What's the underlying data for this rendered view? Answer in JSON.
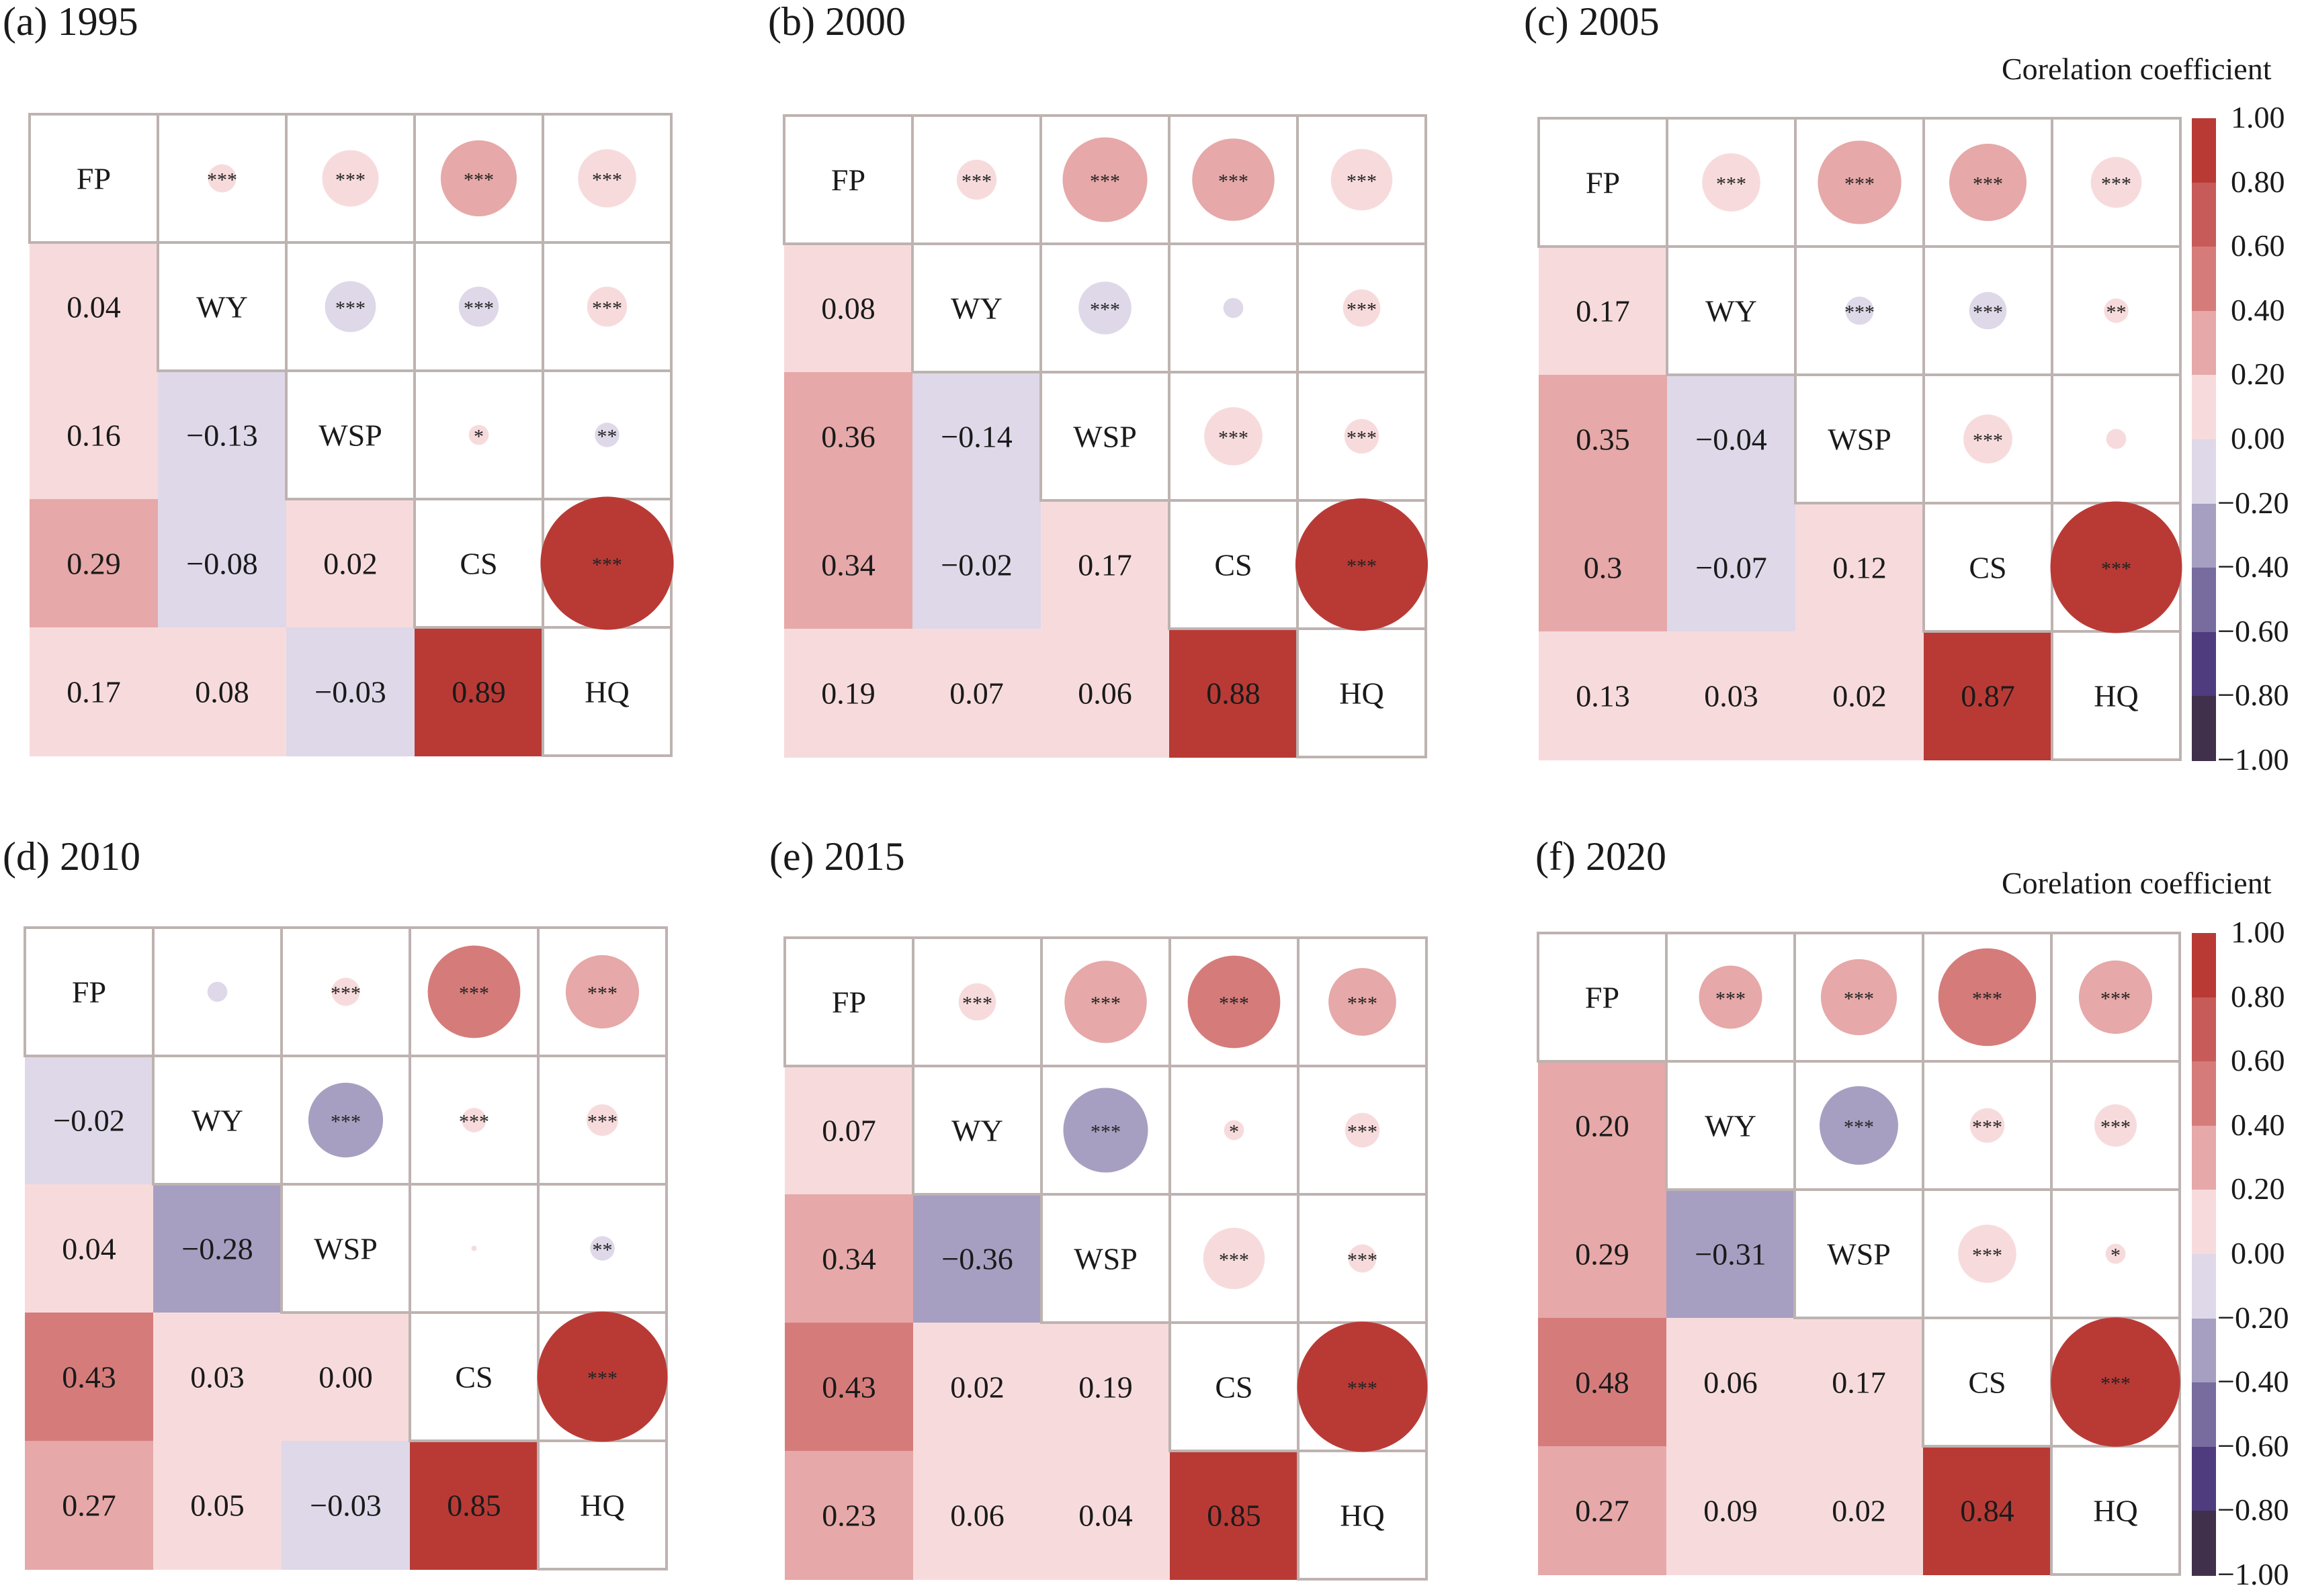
{
  "chart_data": {
    "type": "heatmap",
    "variables": [
      "FP",
      "WY",
      "WSP",
      "CS",
      "HQ"
    ],
    "legend": {
      "title": "Corelation coefficient",
      "ticks": [
        "1.00",
        "0.80",
        "0.60",
        "0.40",
        "0.20",
        "0.00",
        "-0.20",
        "-0.40",
        "-0.60",
        "-0.80",
        "-1.00"
      ],
      "tick_labels": [
        "1.00",
        "0.80",
        "0.60",
        "0.40",
        "0.20",
        "0.00",
        "−0.20",
        "−0.40",
        "−0.60",
        "−0.80",
        "−1.00"
      ],
      "range": [
        -1.0,
        1.0
      ],
      "bins": [
        {
          "from": 0.8,
          "to": 1.0,
          "color": "#b93a35"
        },
        {
          "from": 0.6,
          "to": 0.8,
          "color": "#c75b59"
        },
        {
          "from": 0.4,
          "to": 0.6,
          "color": "#d57c7b"
        },
        {
          "from": 0.2,
          "to": 0.4,
          "color": "#e6a8a8"
        },
        {
          "from": 0.0,
          "to": 0.2,
          "color": "#f7dbdc"
        },
        {
          "from": -0.2,
          "to": 0.0,
          "color": "#ded8e8"
        },
        {
          "from": -0.4,
          "to": -0.2,
          "color": "#a79fc1"
        },
        {
          "from": -0.6,
          "to": -0.4,
          "color": "#786c9e"
        },
        {
          "from": -0.8,
          "to": -0.6,
          "color": "#4f3c7e"
        },
        {
          "from": -1.0,
          "to": -0.8,
          "color": "#41304c"
        }
      ]
    },
    "panels": [
      {
        "title": "(a) 1995",
        "lower": [
          [
            null,
            null,
            null,
            null,
            null
          ],
          [
            0.04,
            null,
            null,
            null,
            null
          ],
          [
            0.16,
            -0.13,
            null,
            null,
            null
          ],
          [
            0.29,
            -0.08,
            0.02,
            null,
            null
          ],
          [
            0.17,
            0.08,
            -0.03,
            0.89,
            null
          ]
        ],
        "lower_labels": [
          [
            null,
            null,
            null,
            null,
            null
          ],
          [
            "0.04",
            null,
            null,
            null,
            null
          ],
          [
            "0.16",
            "−0.13",
            null,
            null,
            null
          ],
          [
            "0.29",
            "−0.08",
            "0.02",
            null,
            null
          ],
          [
            "0.17",
            "0.08",
            "−0.03",
            "0.89",
            null
          ]
        ],
        "sig": [
          [
            null,
            "***",
            "***",
            "***",
            "***"
          ],
          [
            null,
            null,
            "***",
            "***",
            "***"
          ],
          [
            null,
            null,
            null,
            "*",
            "**"
          ],
          [
            null,
            null,
            null,
            null,
            "***"
          ],
          [
            null,
            null,
            null,
            null,
            null
          ]
        ]
      },
      {
        "title": "(b) 2000",
        "lower": [
          [
            null,
            null,
            null,
            null,
            null
          ],
          [
            0.08,
            null,
            null,
            null,
            null
          ],
          [
            0.36,
            -0.14,
            null,
            null,
            null
          ],
          [
            0.34,
            -0.02,
            0.17,
            null,
            null
          ],
          [
            0.19,
            0.07,
            0.06,
            0.88,
            null
          ]
        ],
        "lower_labels": [
          [
            null,
            null,
            null,
            null,
            null
          ],
          [
            "0.08",
            null,
            null,
            null,
            null
          ],
          [
            "0.36",
            "−0.14",
            null,
            null,
            null
          ],
          [
            "0.34",
            "−0.02",
            "0.17",
            null,
            null
          ],
          [
            "0.19",
            "0.07",
            "0.06",
            "0.88",
            null
          ]
        ],
        "sig": [
          [
            null,
            "***",
            "***",
            "***",
            "***"
          ],
          [
            null,
            null,
            "***",
            "",
            "***"
          ],
          [
            null,
            null,
            null,
            "***",
            "***"
          ],
          [
            null,
            null,
            null,
            null,
            "***"
          ],
          [
            null,
            null,
            null,
            null,
            null
          ]
        ]
      },
      {
        "title": "(c) 2005",
        "lower": [
          [
            null,
            null,
            null,
            null,
            null
          ],
          [
            0.17,
            null,
            null,
            null,
            null
          ],
          [
            0.35,
            -0.04,
            null,
            null,
            null
          ],
          [
            0.3,
            -0.07,
            0.12,
            null,
            null
          ],
          [
            0.13,
            0.03,
            0.02,
            0.87,
            null
          ]
        ],
        "lower_labels": [
          [
            null,
            null,
            null,
            null,
            null
          ],
          [
            "0.17",
            null,
            null,
            null,
            null
          ],
          [
            "0.35",
            "−0.04",
            null,
            null,
            null
          ],
          [
            "0.3",
            "−0.07",
            "0.12",
            null,
            null
          ],
          [
            "0.13",
            "0.03",
            "0.02",
            "0.87",
            null
          ]
        ],
        "sig": [
          [
            null,
            "***",
            "***",
            "***",
            "***"
          ],
          [
            null,
            null,
            "***",
            "***",
            "**"
          ],
          [
            null,
            null,
            null,
            "***",
            ""
          ],
          [
            null,
            null,
            null,
            null,
            "***"
          ],
          [
            null,
            null,
            null,
            null,
            null
          ]
        ]
      },
      {
        "title": "(d) 2010",
        "lower": [
          [
            null,
            null,
            null,
            null,
            null
          ],
          [
            -0.02,
            null,
            null,
            null,
            null
          ],
          [
            0.04,
            -0.28,
            null,
            null,
            null
          ],
          [
            0.43,
            0.03,
            0.0,
            null,
            null
          ],
          [
            0.27,
            0.05,
            -0.03,
            0.85,
            null
          ]
        ],
        "lower_labels": [
          [
            null,
            null,
            null,
            null,
            null
          ],
          [
            "−0.02",
            null,
            null,
            null,
            null
          ],
          [
            "0.04",
            "−0.28",
            null,
            null,
            null
          ],
          [
            "0.43",
            "0.03",
            "0.00",
            null,
            null
          ],
          [
            "0.27",
            "0.05",
            "−0.03",
            "0.85",
            null
          ]
        ],
        "sig": [
          [
            null,
            "",
            "***",
            "***",
            "***"
          ],
          [
            null,
            null,
            "***",
            "***",
            "***"
          ],
          [
            null,
            null,
            null,
            "",
            "**"
          ],
          [
            null,
            null,
            null,
            null,
            "***"
          ],
          [
            null,
            null,
            null,
            null,
            null
          ]
        ]
      },
      {
        "title": "(e) 2015",
        "lower": [
          [
            null,
            null,
            null,
            null,
            null
          ],
          [
            0.07,
            null,
            null,
            null,
            null
          ],
          [
            0.34,
            -0.36,
            null,
            null,
            null
          ],
          [
            0.43,
            0.02,
            0.19,
            null,
            null
          ],
          [
            0.23,
            0.06,
            0.04,
            0.85,
            null
          ]
        ],
        "lower_labels": [
          [
            null,
            null,
            null,
            null,
            null
          ],
          [
            "0.07",
            null,
            null,
            null,
            null
          ],
          [
            "0.34",
            "−0.36",
            null,
            null,
            null
          ],
          [
            "0.43",
            "0.02",
            "0.19",
            null,
            null
          ],
          [
            "0.23",
            "0.06",
            "0.04",
            "0.85",
            null
          ]
        ],
        "sig": [
          [
            null,
            "***",
            "***",
            "***",
            "***"
          ],
          [
            null,
            null,
            "***",
            "*",
            "***"
          ],
          [
            null,
            null,
            null,
            "***",
            "***"
          ],
          [
            null,
            null,
            null,
            null,
            "***"
          ],
          [
            null,
            null,
            null,
            null,
            null
          ]
        ]
      },
      {
        "title": "(f) 2020",
        "lower": [
          [
            null,
            null,
            null,
            null,
            null
          ],
          [
            0.2,
            null,
            null,
            null,
            null
          ],
          [
            0.29,
            -0.31,
            null,
            null,
            null
          ],
          [
            0.48,
            0.06,
            0.17,
            null,
            null
          ],
          [
            0.27,
            0.09,
            0.02,
            0.84,
            null
          ]
        ],
        "lower_labels": [
          [
            null,
            null,
            null,
            null,
            null
          ],
          [
            "0.20",
            null,
            null,
            null,
            null
          ],
          [
            "0.29",
            "−0.31",
            null,
            null,
            null
          ],
          [
            "0.48",
            "0.06",
            "0.17",
            null,
            null
          ],
          [
            "0.27",
            "0.09",
            "0.02",
            "0.84",
            null
          ]
        ],
        "sig": [
          [
            null,
            "***",
            "***",
            "***",
            "***"
          ],
          [
            null,
            null,
            "***",
            "***",
            "***"
          ],
          [
            null,
            null,
            null,
            "***",
            "*"
          ],
          [
            null,
            null,
            null,
            null,
            "***"
          ],
          [
            null,
            null,
            null,
            null,
            null
          ]
        ]
      }
    ]
  }
}
